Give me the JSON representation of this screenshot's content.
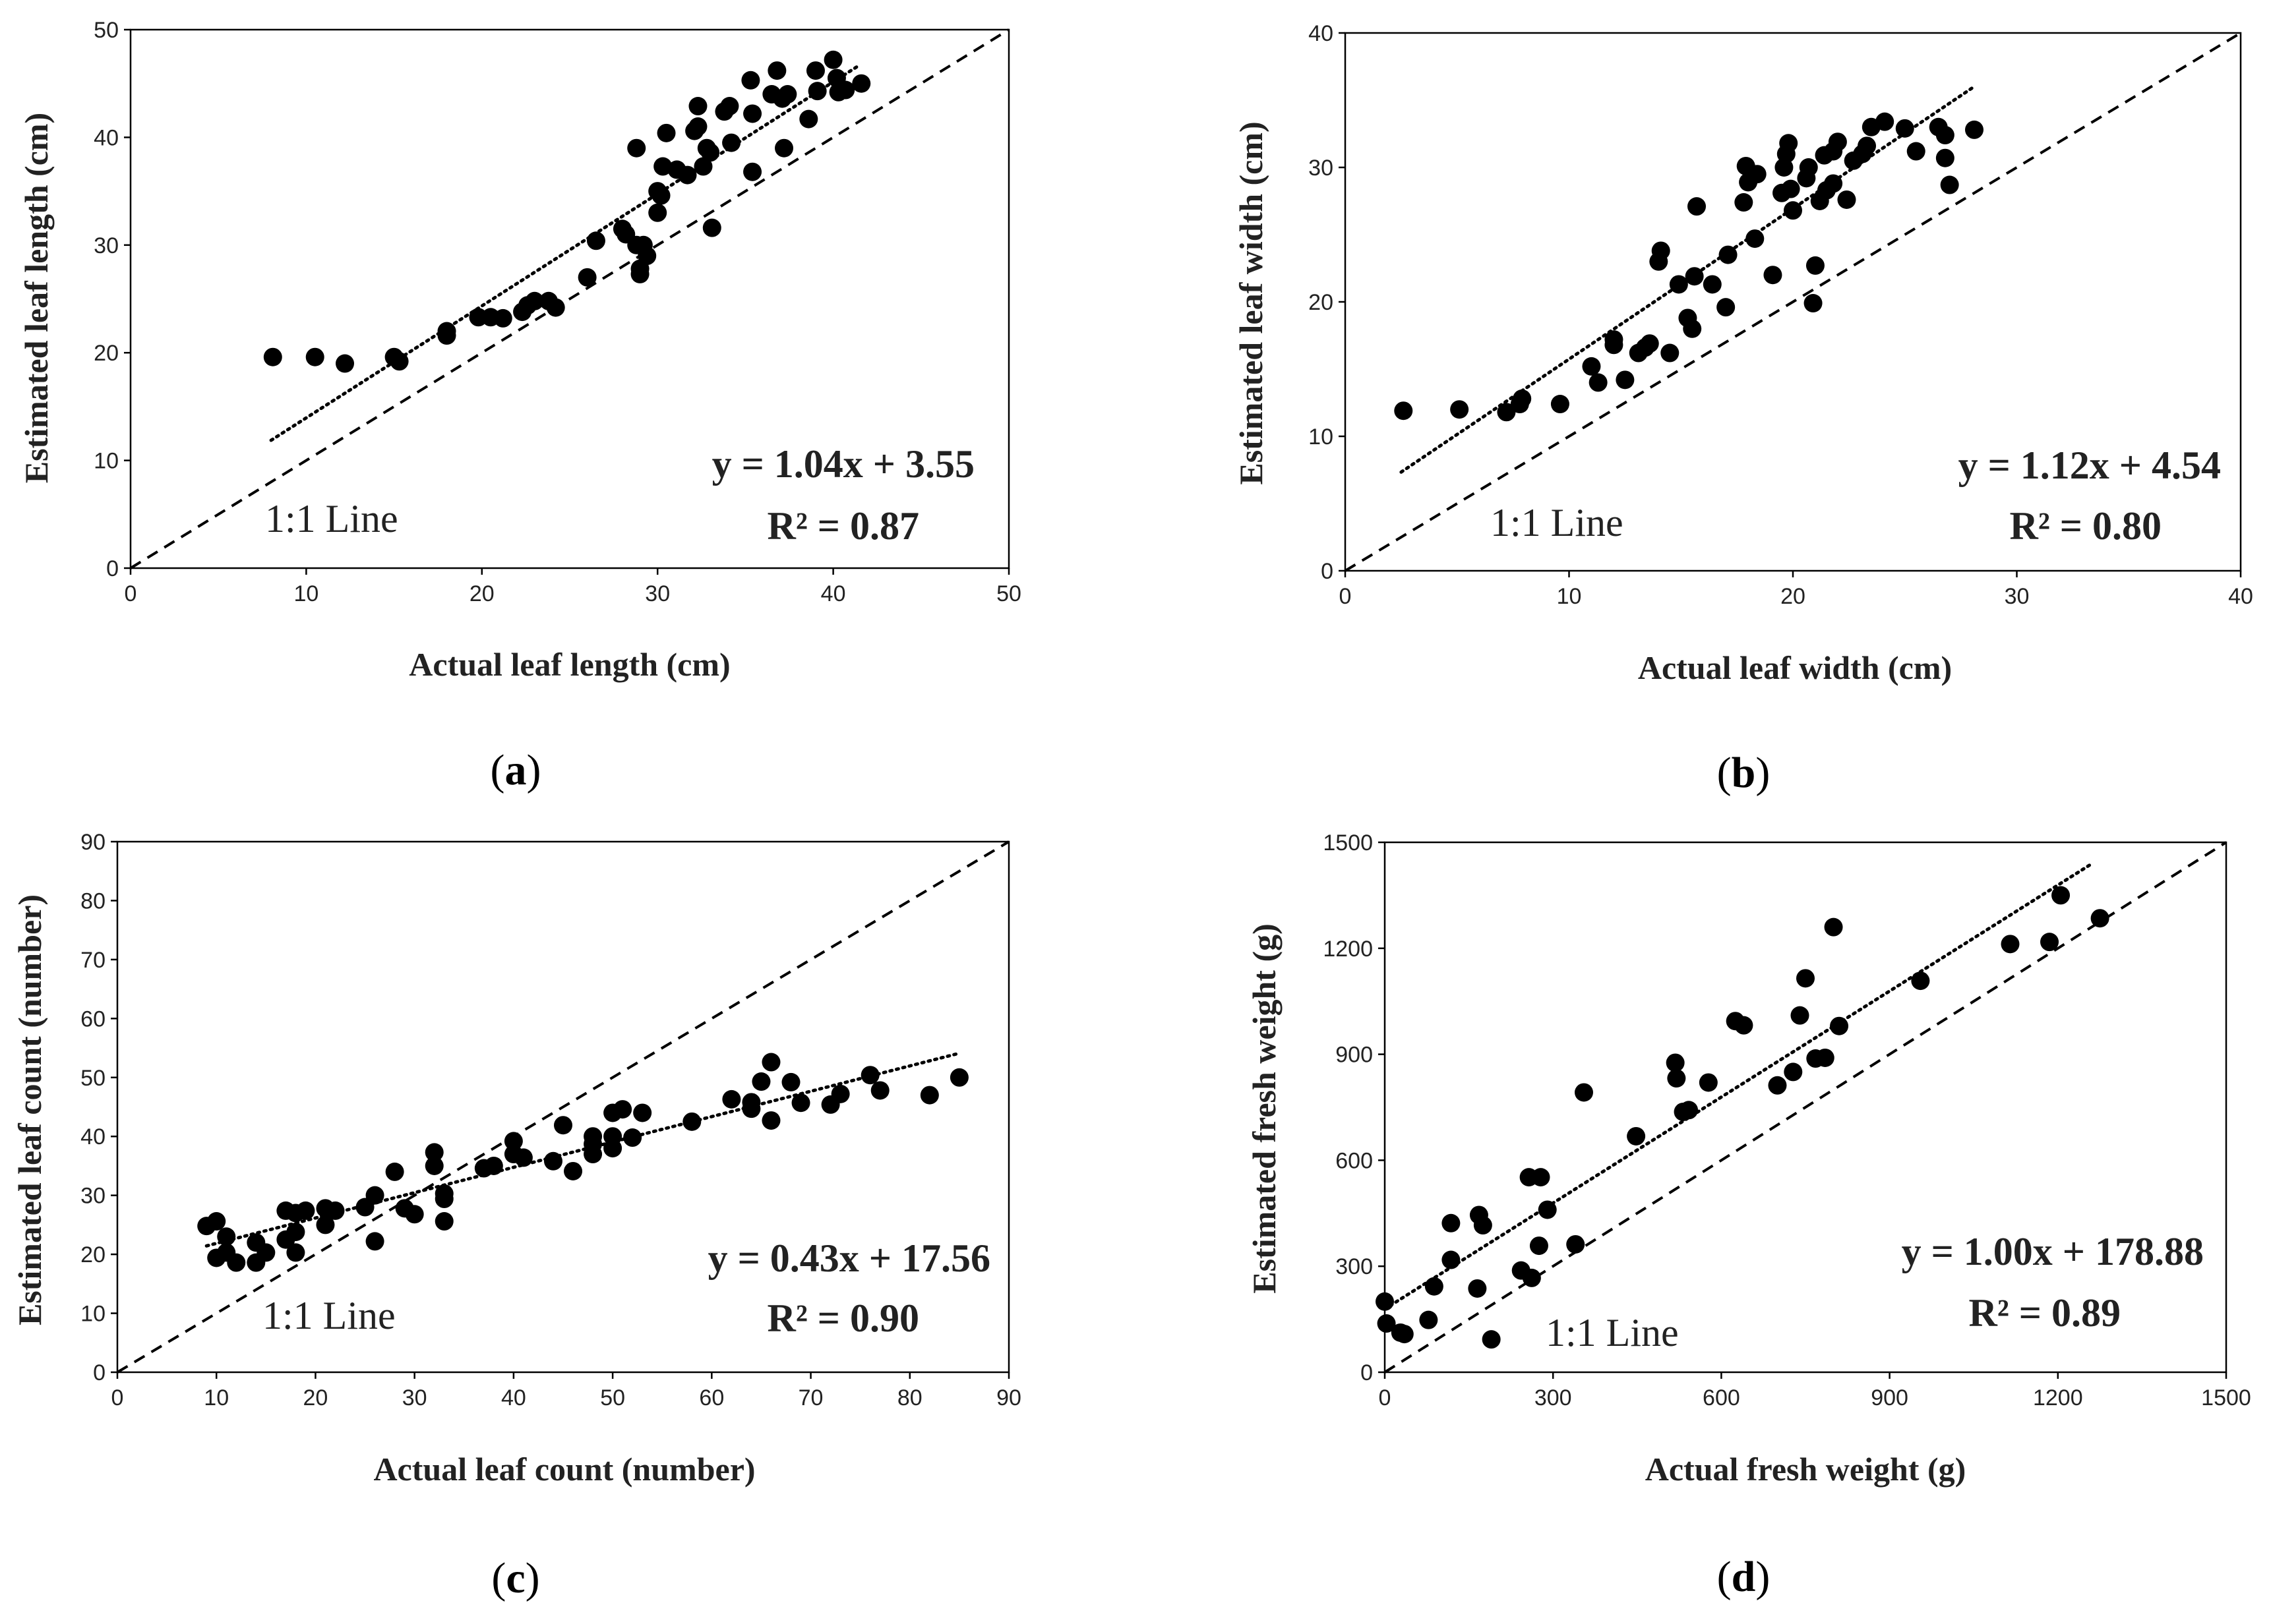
{
  "chart_data": [
    {
      "type": "scatter",
      "panel_label": "a",
      "xlabel": "Actual leaf length (cm)",
      "ylabel": "Estimated leaf length (cm)",
      "xlim": [
        0,
        50
      ],
      "ylim": [
        0,
        50
      ],
      "xticks": [
        0,
        10,
        20,
        30,
        40,
        50
      ],
      "yticks": [
        0,
        10,
        20,
        30,
        40,
        50
      ],
      "equation": "y = 1.04x + 3.55",
      "r2_label": "R² = 0.87",
      "line_label": "1:1 Line",
      "fit": {
        "slope": 1.04,
        "intercept": 3.55,
        "x_range": [
          8,
          41.5
        ]
      },
      "points": [
        [
          8.1,
          19.6
        ],
        [
          10.5,
          19.6
        ],
        [
          12.2,
          19.0
        ],
        [
          15.0,
          19.6
        ],
        [
          15.3,
          19.2
        ],
        [
          18.0,
          21.6
        ],
        [
          18.0,
          22.0
        ],
        [
          19.8,
          23.3
        ],
        [
          20.5,
          23.3
        ],
        [
          21.2,
          23.2
        ],
        [
          22.3,
          23.8
        ],
        [
          22.6,
          24.4
        ],
        [
          23.0,
          24.8
        ],
        [
          23.8,
          24.8
        ],
        [
          24.2,
          24.2
        ],
        [
          26.0,
          27.0
        ],
        [
          26.5,
          30.4
        ],
        [
          28.0,
          31.5
        ],
        [
          28.2,
          31.0
        ],
        [
          28.8,
          30.0
        ],
        [
          29.0,
          27.3
        ],
        [
          29.0,
          27.8
        ],
        [
          29.2,
          30.0
        ],
        [
          29.4,
          29.0
        ],
        [
          28.8,
          39.0
        ],
        [
          30.0,
          33.0
        ],
        [
          30.0,
          35.0
        ],
        [
          30.2,
          34.6
        ],
        [
          30.3,
          37.3
        ],
        [
          30.5,
          40.4
        ],
        [
          31.1,
          37.0
        ],
        [
          31.7,
          36.5
        ],
        [
          32.1,
          40.6
        ],
        [
          32.3,
          41.0
        ],
        [
          32.3,
          42.9
        ],
        [
          32.6,
          37.3
        ],
        [
          32.8,
          39.0
        ],
        [
          33.0,
          38.6
        ],
        [
          33.1,
          31.6
        ],
        [
          33.8,
          42.4
        ],
        [
          34.1,
          42.9
        ],
        [
          34.2,
          39.5
        ],
        [
          35.3,
          45.3
        ],
        [
          35.4,
          42.2
        ],
        [
          35.4,
          36.8
        ],
        [
          36.5,
          44.0
        ],
        [
          36.8,
          46.2
        ],
        [
          37.1,
          43.6
        ],
        [
          37.2,
          39.0
        ],
        [
          37.4,
          44.0
        ],
        [
          38.6,
          41.7
        ],
        [
          39.0,
          46.2
        ],
        [
          39.1,
          44.3
        ],
        [
          40.0,
          47.2
        ],
        [
          40.2,
          45.5
        ],
        [
          40.3,
          44.2
        ],
        [
          40.7,
          44.4
        ],
        [
          41.6,
          45.0
        ]
      ]
    },
    {
      "type": "scatter",
      "panel_label": "b",
      "xlabel": "Actual leaf width (cm)",
      "ylabel": "Estimated leaf width (cm)",
      "xlim": [
        0,
        40
      ],
      "ylim": [
        0,
        40
      ],
      "xticks": [
        0,
        10,
        20,
        30,
        40
      ],
      "yticks": [
        0,
        10,
        20,
        30,
        40
      ],
      "equation": "y = 1.12x + 4.54",
      "r2_label": "R² = 0.80",
      "line_label": "1:1 Line",
      "fit": {
        "slope": 1.12,
        "intercept": 4.54,
        "x_range": [
          2.5,
          28
        ]
      },
      "points": [
        [
          2.6,
          11.9
        ],
        [
          5.1,
          12.0
        ],
        [
          7.2,
          11.8
        ],
        [
          7.8,
          12.4
        ],
        [
          7.9,
          12.8
        ],
        [
          9.6,
          12.4
        ],
        [
          11.0,
          15.2
        ],
        [
          11.3,
          14.0
        ],
        [
          12.0,
          16.8
        ],
        [
          12.0,
          17.2
        ],
        [
          12.5,
          14.2
        ],
        [
          13.1,
          16.2
        ],
        [
          13.4,
          16.6
        ],
        [
          13.6,
          16.9
        ],
        [
          14.0,
          23.0
        ],
        [
          14.1,
          23.8
        ],
        [
          14.5,
          16.2
        ],
        [
          14.9,
          21.3
        ],
        [
          15.3,
          18.8
        ],
        [
          15.5,
          18.0
        ],
        [
          15.6,
          21.9
        ],
        [
          15.7,
          27.1
        ],
        [
          16.4,
          21.3
        ],
        [
          17.0,
          19.6
        ],
        [
          17.1,
          23.5
        ],
        [
          17.8,
          27.4
        ],
        [
          17.9,
          30.1
        ],
        [
          18.0,
          28.9
        ],
        [
          18.3,
          24.7
        ],
        [
          18.4,
          29.5
        ],
        [
          19.1,
          22.0
        ],
        [
          19.5,
          28.1
        ],
        [
          19.6,
          30.0
        ],
        [
          19.7,
          31.0
        ],
        [
          19.8,
          31.8
        ],
        [
          19.9,
          28.4
        ],
        [
          20.0,
          26.8
        ],
        [
          20.6,
          29.2
        ],
        [
          20.7,
          30.0
        ],
        [
          20.9,
          19.9
        ],
        [
          21.0,
          22.7
        ],
        [
          21.2,
          27.5
        ],
        [
          21.4,
          30.9
        ],
        [
          21.5,
          28.3
        ],
        [
          21.8,
          28.8
        ],
        [
          21.8,
          31.2
        ],
        [
          22.0,
          31.9
        ],
        [
          22.4,
          27.6
        ],
        [
          22.7,
          30.5
        ],
        [
          23.1,
          31.0
        ],
        [
          23.3,
          31.6
        ],
        [
          23.5,
          33.0
        ],
        [
          24.1,
          33.4
        ],
        [
          25.0,
          32.9
        ],
        [
          25.5,
          31.2
        ],
        [
          26.5,
          33.0
        ],
        [
          26.8,
          30.7
        ],
        [
          26.8,
          32.4
        ],
        [
          27.0,
          28.7
        ],
        [
          28.1,
          32.8
        ]
      ]
    },
    {
      "type": "scatter",
      "panel_label": "c",
      "xlabel": "Actual leaf count (number)",
      "ylabel": "Estimated leaf count (number)",
      "xlim": [
        0,
        90
      ],
      "ylim": [
        0,
        90
      ],
      "xticks": [
        0,
        10,
        20,
        30,
        40,
        50,
        60,
        70,
        80,
        90
      ],
      "yticks": [
        0,
        10,
        20,
        30,
        40,
        50,
        60,
        70,
        80,
        90
      ],
      "equation": "y = 0.43x + 17.56",
      "r2_label": "R² = 0.90",
      "line_label": "1:1 Line",
      "fit": {
        "slope": 0.43,
        "intercept": 17.56,
        "x_range": [
          9,
          85
        ]
      },
      "points": [
        [
          9,
          24.8
        ],
        [
          10,
          25.6
        ],
        [
          10,
          19.4
        ],
        [
          11,
          20.3
        ],
        [
          11,
          23.0
        ],
        [
          12,
          18.6
        ],
        [
          14,
          18.6
        ],
        [
          14,
          22.0
        ],
        [
          15,
          20.3
        ],
        [
          17,
          22.5
        ],
        [
          17,
          27.4
        ],
        [
          18,
          23.8
        ],
        [
          18,
          20.3
        ],
        [
          18,
          27.0
        ],
        [
          19,
          27.4
        ],
        [
          21,
          25.0
        ],
        [
          21,
          27.8
        ],
        [
          22,
          27.4
        ],
        [
          25,
          28.0
        ],
        [
          26,
          22.2
        ],
        [
          26,
          30.0
        ],
        [
          28,
          34.0
        ],
        [
          29,
          27.8
        ],
        [
          30,
          26.8
        ],
        [
          32,
          37.3
        ],
        [
          32,
          35.0
        ],
        [
          33,
          29.4
        ],
        [
          33,
          30.3
        ],
        [
          33,
          25.6
        ],
        [
          37,
          34.6
        ],
        [
          38,
          35.0
        ],
        [
          40,
          39.2
        ],
        [
          40,
          37.0
        ],
        [
          41,
          36.4
        ],
        [
          44,
          35.8
        ],
        [
          45,
          41.9
        ],
        [
          46,
          34.1
        ],
        [
          48,
          37.0
        ],
        [
          48,
          38.7
        ],
        [
          48,
          40.0
        ],
        [
          50,
          38.0
        ],
        [
          50,
          40.0
        ],
        [
          50,
          44.0
        ],
        [
          51,
          44.6
        ],
        [
          52,
          39.8
        ],
        [
          53,
          44.0
        ],
        [
          58,
          42.5
        ],
        [
          62,
          46.3
        ],
        [
          64,
          45.8
        ],
        [
          64,
          44.7
        ],
        [
          65,
          49.3
        ],
        [
          66,
          52.6
        ],
        [
          66,
          42.7
        ],
        [
          68,
          49.2
        ],
        [
          69,
          45.7
        ],
        [
          72,
          45.4
        ],
        [
          73,
          47.2
        ],
        [
          76,
          50.4
        ],
        [
          77,
          47.8
        ],
        [
          82,
          47.0
        ],
        [
          85,
          50.0
        ]
      ]
    },
    {
      "type": "scatter",
      "panel_label": "d",
      "xlabel": "Actual fresh weight (g)",
      "ylabel": "Estimated fresh weight (g)",
      "xlim": [
        0,
        1500
      ],
      "ylim": [
        0,
        1500
      ],
      "xticks": [
        0,
        300,
        600,
        900,
        1200,
        1500
      ],
      "yticks": [
        0,
        300,
        600,
        900,
        1200,
        1500
      ],
      "equation": "y = 1.00x + 178.88",
      "r2_label": "R² = 0.89",
      "line_label": "1:1 Line",
      "fit": {
        "slope": 1.0,
        "intercept": 178.88,
        "x_range": [
          0,
          1260
        ]
      },
      "points": [
        [
          0,
          200
        ],
        [
          3,
          138
        ],
        [
          28,
          112
        ],
        [
          35,
          108
        ],
        [
          78,
          148
        ],
        [
          88,
          243
        ],
        [
          118,
          318
        ],
        [
          118,
          422
        ],
        [
          168,
          445
        ],
        [
          175,
          416
        ],
        [
          165,
          237
        ],
        [
          190,
          93
        ],
        [
          243,
          288
        ],
        [
          257,
          552
        ],
        [
          262,
          267
        ],
        [
          275,
          358
        ],
        [
          278,
          552
        ],
        [
          290,
          460
        ],
        [
          340,
          362
        ],
        [
          355,
          792
        ],
        [
          448,
          668
        ],
        [
          518,
          876
        ],
        [
          520,
          832
        ],
        [
          532,
          737
        ],
        [
          542,
          742
        ],
        [
          577,
          820
        ],
        [
          625,
          994
        ],
        [
          640,
          982
        ],
        [
          700,
          812
        ],
        [
          728,
          850
        ],
        [
          740,
          1010
        ],
        [
          750,
          1115
        ],
        [
          768,
          888
        ],
        [
          785,
          890
        ],
        [
          800,
          1260
        ],
        [
          810,
          980
        ],
        [
          955,
          1108
        ],
        [
          1115,
          1212
        ],
        [
          1185,
          1218
        ],
        [
          1205,
          1350
        ],
        [
          1275,
          1285
        ]
      ]
    }
  ]
}
